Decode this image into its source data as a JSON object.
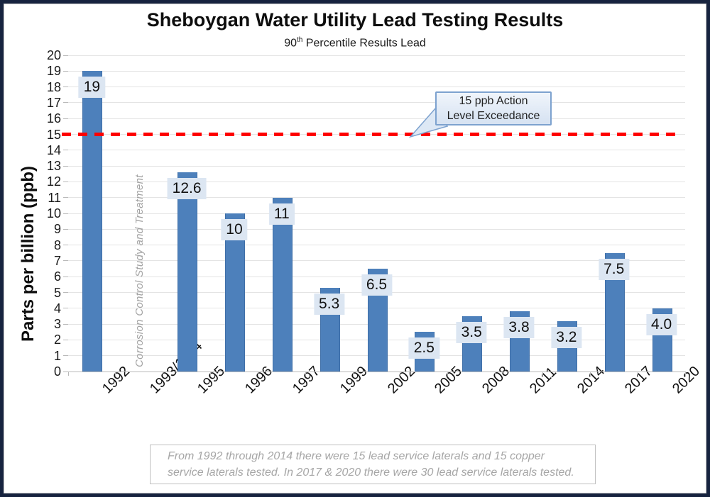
{
  "frame": {
    "border_color": "#17233f"
  },
  "chart_data": {
    "type": "bar",
    "title": "Sheboygan Water Utility Lead Testing Results",
    "subtitle": {
      "base": "90",
      "superscript": "th",
      "rest": " Percentile Results Lead"
    },
    "subtitle_plain": "90th Percentile Results Lead",
    "ylabel": "Parts per billion (ppb)",
    "xlabel": "",
    "ylim": [
      0,
      20
    ],
    "ytick_step": 1,
    "grid": "horizontal",
    "legend_position": "none",
    "categories": [
      "1992",
      "1993/1994",
      "1995",
      "1996",
      "1997",
      "1999",
      "2002",
      "2005",
      "2008",
      "2011",
      "2014",
      "2017",
      "2020"
    ],
    "values": [
      19,
      null,
      12.6,
      10,
      11,
      5.3,
      6.5,
      2.5,
      3.5,
      3.8,
      3.2,
      7.5,
      4.0
    ],
    "value_labels": [
      "19",
      null,
      "12.6",
      "10",
      "11",
      "5.3",
      "6.5",
      "2.5",
      "3.5",
      "3.8",
      "3.2",
      "7.5",
      "4.0"
    ],
    "bar_color": "#4d80bb",
    "bar_edge_color": "#3f6fa8",
    "value_label_bg": "#dce6f2",
    "gridline_color": "#e4e4e4",
    "axis_color": "#b9b9b9",
    "action_line": {
      "value": 15,
      "color": "#fe0000",
      "style": "dashed",
      "label_line1": "15 ppb Action",
      "label_line2": "Level Exceedance"
    },
    "rotated_annotation": "Corrosion Control Study and Treatment",
    "footnote_line1": "From 1992 through 2014 there were 15 lead service laterals and 15 copper",
    "footnote_line2": "service laterals tested. In 2017 & 2020 there were 30 lead service laterals tested."
  }
}
